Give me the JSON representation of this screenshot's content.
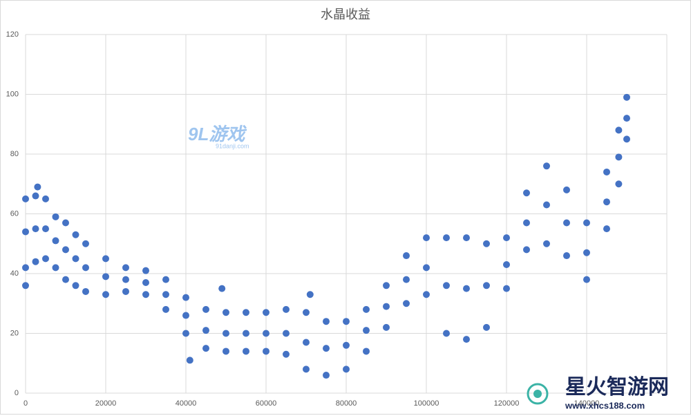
{
  "chart_data": {
    "type": "scatter",
    "title": "水晶收益",
    "xlim": [
      0,
      160000
    ],
    "ylim": [
      0,
      120
    ],
    "xticks": [
      0,
      20000,
      40000,
      60000,
      80000,
      100000,
      120000,
      140000
    ],
    "yticks": [
      0,
      20,
      40,
      60,
      80,
      100,
      120
    ],
    "grid": true,
    "series": [
      {
        "name": "水晶收益",
        "color": "#4472c4",
        "x": [
          0,
          0,
          0,
          2500,
          2500,
          2500,
          5000,
          5000,
          5000,
          7500,
          7500,
          7500,
          10000,
          10000,
          10000,
          12500,
          12500,
          12500,
          15000,
          15000,
          15000,
          20000,
          20000,
          20000,
          25000,
          25000,
          25000,
          30000,
          30000,
          30000,
          35000,
          35000,
          35000,
          40000,
          40000,
          40000,
          45000,
          45000,
          45000,
          50000,
          50000,
          50000,
          55000,
          55000,
          55000,
          60000,
          60000,
          60000,
          65000,
          65000,
          65000,
          70000,
          70000,
          70000,
          75000,
          75000,
          75000,
          80000,
          80000,
          80000,
          85000,
          85000,
          85000,
          90000,
          90000,
          90000,
          95000,
          95000,
          95000,
          100000,
          100000,
          100000,
          105000,
          105000,
          105000,
          110000,
          110000,
          110000,
          115000,
          115000,
          115000,
          120000,
          120000,
          120000,
          125000,
          125000,
          125000,
          130000,
          130000,
          130000,
          135000,
          135000,
          135000,
          140000,
          140000,
          140000,
          145000,
          145000,
          145000,
          148000,
          148000,
          148000,
          150000,
          150000,
          150000,
          3000,
          49000,
          71000,
          0,
          41000
        ],
        "y": [
          42,
          54,
          65,
          44,
          55,
          66,
          45,
          55,
          65,
          42,
          51,
          59,
          38,
          48,
          57,
          36,
          45,
          53,
          34,
          42,
          50,
          33,
          39,
          45,
          34,
          38,
          42,
          33,
          37,
          41,
          28,
          33,
          38,
          20,
          26,
          32,
          15,
          21,
          28,
          14,
          20,
          27,
          14,
          20,
          27,
          14,
          20,
          27,
          13,
          20,
          28,
          8,
          17,
          27,
          6,
          15,
          24,
          8,
          16,
          24,
          14,
          21,
          28,
          22,
          29,
          36,
          30,
          38,
          46,
          33,
          42,
          52,
          20,
          36,
          52,
          18,
          35,
          52,
          22,
          36,
          50,
          35,
          43,
          52,
          48,
          57,
          67,
          50,
          63,
          76,
          46,
          57,
          68,
          38,
          47,
          57,
          55,
          64,
          74,
          70,
          79,
          88,
          85,
          92,
          99,
          69,
          35,
          33,
          36,
          11
        ]
      }
    ],
    "watermarks": [
      "9L游戏",
      "91danji.com",
      "星火智游网",
      "www.xhcs188.com"
    ]
  }
}
